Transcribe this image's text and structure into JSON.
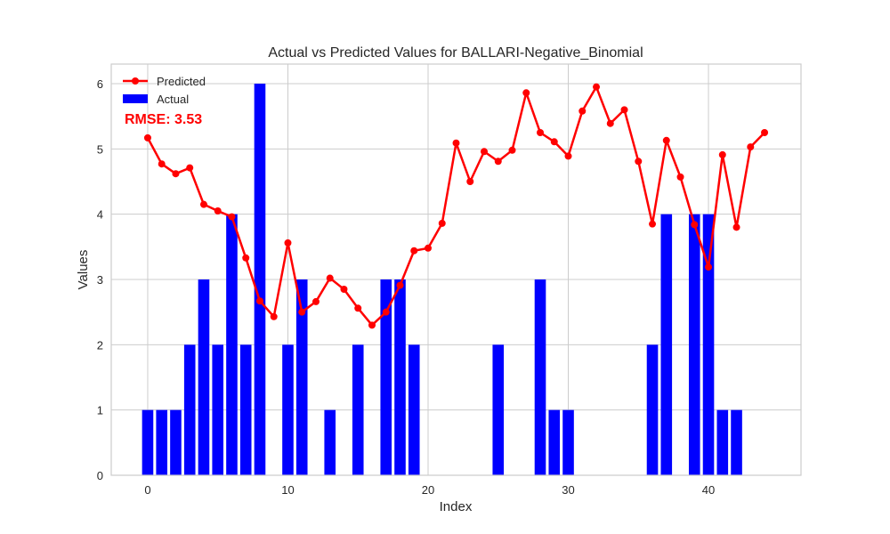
{
  "chart_data": {
    "type": "bar",
    "title": "Actual vs Predicted Values for BALLARI-Negative_Binomial",
    "xlabel": "Index",
    "ylabel": "Values",
    "xlim": [
      -2.6,
      46.6
    ],
    "ylim": [
      0,
      6.3
    ],
    "xticks": [
      0,
      10,
      20,
      30,
      40
    ],
    "yticks": [
      0,
      1,
      2,
      3,
      4,
      5,
      6
    ],
    "grid": true,
    "legend_position": "top-left",
    "annotation": "RMSE: 3.53",
    "x": [
      0,
      1,
      2,
      3,
      4,
      5,
      6,
      7,
      8,
      9,
      10,
      11,
      12,
      13,
      14,
      15,
      16,
      17,
      18,
      19,
      20,
      21,
      22,
      23,
      24,
      25,
      26,
      27,
      28,
      29,
      30,
      31,
      32,
      33,
      34,
      35,
      36,
      37,
      38,
      39,
      40,
      41,
      42,
      43,
      44
    ],
    "series": [
      {
        "name": "Predicted",
        "type": "line",
        "color": "#ff0000",
        "values": [
          5.17,
          4.77,
          4.62,
          4.71,
          4.15,
          4.05,
          3.96,
          3.33,
          2.67,
          2.43,
          3.56,
          2.5,
          2.66,
          3.02,
          2.85,
          2.56,
          2.3,
          2.5,
          2.91,
          3.44,
          3.48,
          3.86,
          5.09,
          4.5,
          4.96,
          4.81,
          4.98,
          5.86,
          5.25,
          5.11,
          4.89,
          5.58,
          5.95,
          5.39,
          5.6,
          4.81,
          3.85,
          5.13,
          4.57,
          3.84,
          3.19,
          4.91,
          3.8,
          5.03,
          5.25
        ]
      },
      {
        "name": "Actual",
        "type": "bar",
        "color": "#0000ff",
        "values": [
          1,
          1,
          1,
          2,
          3,
          2,
          4,
          2,
          6,
          0,
          2,
          3,
          0,
          1,
          0,
          2,
          0,
          3,
          3,
          2,
          0,
          0,
          0,
          0,
          0,
          2,
          0,
          0,
          3,
          1,
          1,
          0,
          0,
          0,
          0,
          0,
          2,
          4,
          0,
          4,
          4,
          1,
          1,
          0,
          0
        ]
      }
    ]
  }
}
